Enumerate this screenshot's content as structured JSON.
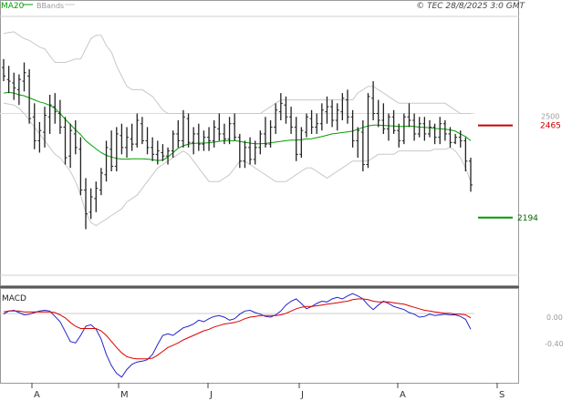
{
  "header": {
    "ma_label": "MA20",
    "bb_label": "BBands",
    "copyright": "© TEC 28/8/2025 3:0 GMT"
  },
  "colors": {
    "ma": "#00a000",
    "bands": "#c8c8c8",
    "price": "#222222",
    "macd": "#2222cc",
    "signal": "#dd0000",
    "resistance": "#cc0000",
    "support": "#009900"
  },
  "levels": {
    "resistance": {
      "label": "2465",
      "value": 2465
    },
    "support": {
      "label": "2194",
      "value": 2194
    },
    "grid_label": "2500"
  },
  "macd": {
    "title": "MACD",
    "ticks": [
      "0.00",
      "-0.40"
    ]
  },
  "months": [
    "A",
    "M",
    "J",
    "J",
    "A",
    "S"
  ],
  "chart_data": [
    {
      "type": "ohlc",
      "title": "",
      "overlays": [
        "MA20",
        "BBands"
      ],
      "price_range": [
        2030,
        2780
      ],
      "horizontal_levels": [
        2465,
        2194
      ],
      "gridline": 2500,
      "x_months": [
        "A",
        "M",
        "J",
        "J",
        "A",
        "S"
      ],
      "ohlc": [
        [
          2635,
          2660,
          2595,
          2610
        ],
        [
          2600,
          2640,
          2560,
          2595
        ],
        [
          2590,
          2620,
          2540,
          2575
        ],
        [
          2570,
          2615,
          2525,
          2600
        ],
        [
          2595,
          2650,
          2565,
          2620
        ],
        [
          2610,
          2630,
          2470,
          2485
        ],
        [
          2490,
          2530,
          2395,
          2420
        ],
        [
          2420,
          2475,
          2385,
          2450
        ],
        [
          2445,
          2520,
          2400,
          2495
        ],
        [
          2490,
          2555,
          2440,
          2525
        ],
        [
          2520,
          2560,
          2470,
          2505
        ],
        [
          2500,
          2540,
          2440,
          2460
        ],
        [
          2460,
          2490,
          2350,
          2370
        ],
        [
          2375,
          2470,
          2340,
          2450
        ],
        [
          2440,
          2480,
          2380,
          2400
        ],
        [
          2395,
          2430,
          2260,
          2275
        ],
        [
          2275,
          2310,
          2160,
          2205
        ],
        [
          2210,
          2280,
          2190,
          2255
        ],
        [
          2250,
          2300,
          2210,
          2280
        ],
        [
          2275,
          2340,
          2260,
          2325
        ],
        [
          2320,
          2420,
          2300,
          2400
        ],
        [
          2395,
          2450,
          2330,
          2345
        ],
        [
          2345,
          2460,
          2330,
          2440
        ],
        [
          2435,
          2470,
          2380,
          2400
        ],
        [
          2400,
          2460,
          2370,
          2430
        ],
        [
          2425,
          2470,
          2390,
          2410
        ],
        [
          2410,
          2500,
          2400,
          2480
        ],
        [
          2470,
          2490,
          2410,
          2420
        ],
        [
          2420,
          2460,
          2380,
          2400
        ],
        [
          2400,
          2430,
          2360,
          2380
        ],
        [
          2380,
          2420,
          2350,
          2390
        ],
        [
          2385,
          2410,
          2360,
          2375
        ],
        [
          2375,
          2400,
          2350,
          2390
        ],
        [
          2390,
          2450,
          2370,
          2440
        ],
        [
          2440,
          2480,
          2400,
          2420
        ],
        [
          2420,
          2510,
          2400,
          2490
        ],
        [
          2485,
          2500,
          2400,
          2415
        ],
        [
          2415,
          2460,
          2380,
          2440
        ],
        [
          2440,
          2470,
          2390,
          2410
        ],
        [
          2410,
          2450,
          2390,
          2430
        ],
        [
          2430,
          2460,
          2390,
          2420
        ],
        [
          2420,
          2480,
          2400,
          2460
        ],
        [
          2455,
          2500,
          2420,
          2440
        ],
        [
          2440,
          2470,
          2410,
          2425
        ],
        [
          2425,
          2490,
          2410,
          2470
        ],
        [
          2470,
          2500,
          2420,
          2430
        ],
        [
          2430,
          2440,
          2340,
          2360
        ],
        [
          2360,
          2420,
          2340,
          2400
        ],
        [
          2400,
          2430,
          2350,
          2365
        ],
        [
          2365,
          2420,
          2350,
          2400
        ],
        [
          2400,
          2450,
          2380,
          2440
        ],
        [
          2440,
          2490,
          2400,
          2410
        ],
        [
          2410,
          2480,
          2400,
          2460
        ],
        [
          2460,
          2530,
          2440,
          2510
        ],
        [
          2505,
          2560,
          2480,
          2530
        ],
        [
          2525,
          2550,
          2470,
          2490
        ],
        [
          2490,
          2520,
          2440,
          2460
        ],
        [
          2460,
          2490,
          2360,
          2380
        ],
        [
          2380,
          2460,
          2370,
          2450
        ],
        [
          2445,
          2500,
          2430,
          2490
        ],
        [
          2485,
          2510,
          2440,
          2460
        ],
        [
          2460,
          2500,
          2440,
          2470
        ],
        [
          2470,
          2530,
          2450,
          2510
        ],
        [
          2505,
          2550,
          2470,
          2520
        ],
        [
          2520,
          2540,
          2460,
          2480
        ],
        [
          2480,
          2530,
          2450,
          2510
        ],
        [
          2505,
          2560,
          2480,
          2545
        ],
        [
          2540,
          2570,
          2470,
          2490
        ],
        [
          2490,
          2510,
          2400,
          2420
        ],
        [
          2420,
          2460,
          2370,
          2450
        ],
        [
          2445,
          2480,
          2330,
          2350
        ],
        [
          2350,
          2560,
          2340,
          2550
        ],
        [
          2545,
          2595,
          2480,
          2500
        ],
        [
          2500,
          2540,
          2460,
          2480
        ],
        [
          2480,
          2530,
          2440,
          2455
        ],
        [
          2455,
          2500,
          2420,
          2490
        ],
        [
          2490,
          2510,
          2440,
          2450
        ],
        [
          2450,
          2470,
          2400,
          2420
        ],
        [
          2420,
          2500,
          2410,
          2490
        ],
        [
          2490,
          2530,
          2460,
          2480
        ],
        [
          2480,
          2500,
          2420,
          2440
        ],
        [
          2440,
          2490,
          2430,
          2470
        ],
        [
          2470,
          2490,
          2420,
          2440
        ],
        [
          2440,
          2480,
          2430,
          2460
        ],
        [
          2460,
          2470,
          2410,
          2430
        ],
        [
          2430,
          2490,
          2410,
          2470
        ],
        [
          2470,
          2480,
          2420,
          2440
        ],
        [
          2440,
          2460,
          2400,
          2415
        ],
        [
          2415,
          2440,
          2410,
          2430
        ],
        [
          2430,
          2450,
          2400,
          2420
        ],
        [
          2420,
          2430,
          2330,
          2360
        ],
        [
          2360,
          2370,
          2270,
          2290
        ]
      ],
      "ma20": [
        2560,
        2562,
        2560,
        2555,
        2552,
        2546,
        2540,
        2534,
        2530,
        2524,
        2515,
        2500,
        2483,
        2468,
        2452,
        2438,
        2420,
        2408,
        2396,
        2385,
        2377,
        2372,
        2368,
        2366,
        2366,
        2367,
        2367,
        2367,
        2366,
        2364,
        2362,
        2363,
        2372,
        2385,
        2398,
        2405,
        2410,
        2412,
        2413,
        2413,
        2414,
        2416,
        2418,
        2420,
        2420,
        2420,
        2418,
        2415,
        2413,
        2411,
        2411,
        2412,
        2414,
        2416,
        2418,
        2420,
        2422,
        2422,
        2423,
        2425,
        2426,
        2429,
        2432,
        2436,
        2440,
        2442,
        2444,
        2446,
        2448,
        2454,
        2459,
        2463,
        2466,
        2466,
        2465,
        2464,
        2463,
        2462,
        2462,
        2463,
        2462,
        2460,
        2459,
        2458,
        2456,
        2455,
        2454,
        2452,
        2448,
        2440,
        2432,
        2420
      ],
      "bb_upper": [
        2735,
        2738,
        2740,
        2730,
        2720,
        2715,
        2705,
        2695,
        2690,
        2670,
        2650,
        2650,
        2650,
        2655,
        2660,
        2660,
        2690,
        2720,
        2730,
        2730,
        2700,
        2680,
        2640,
        2610,
        2580,
        2570,
        2570,
        2570,
        2560,
        2550,
        2530,
        2510,
        2500,
        2500,
        2500,
        2500,
        2500,
        2500,
        2500,
        2500,
        2500,
        2500,
        2500,
        2500,
        2500,
        2500,
        2500,
        2500,
        2500,
        2500,
        2500,
        2510,
        2520,
        2530,
        2540,
        2540,
        2540,
        2540,
        2540,
        2540,
        2540,
        2540,
        2540,
        2540,
        2540,
        2540,
        2540,
        2540,
        2540,
        2560,
        2570,
        2580,
        2580,
        2570,
        2560,
        2550,
        2540,
        2530,
        2530,
        2530,
        2530,
        2530,
        2530,
        2530,
        2530,
        2530,
        2530,
        2520,
        2510,
        2500,
        2500,
        2500
      ],
      "bb_lower": [
        2530,
        2528,
        2525,
        2515,
        2500,
        2480,
        2460,
        2440,
        2420,
        2400,
        2380,
        2370,
        2350,
        2330,
        2300,
        2260,
        2210,
        2180,
        2170,
        2180,
        2190,
        2200,
        2210,
        2220,
        2240,
        2250,
        2260,
        2280,
        2300,
        2320,
        2340,
        2350,
        2360,
        2370,
        2380,
        2390,
        2380,
        2360,
        2340,
        2320,
        2300,
        2300,
        2300,
        2310,
        2320,
        2340,
        2360,
        2360,
        2350,
        2340,
        2330,
        2320,
        2310,
        2300,
        2300,
        2300,
        2310,
        2320,
        2330,
        2340,
        2340,
        2330,
        2320,
        2310,
        2320,
        2330,
        2340,
        2350,
        2360,
        2360,
        2360,
        2360,
        2370,
        2380,
        2380,
        2380,
        2380,
        2390,
        2390,
        2390,
        2390,
        2390,
        2390,
        2390,
        2395,
        2395,
        2395,
        2400,
        2390,
        2370,
        2340,
        2300
      ]
    },
    {
      "type": "line",
      "title": "MACD",
      "y_ticks": [
        0.0,
        -0.4
      ],
      "ylim": [
        -0.9,
        0.3
      ],
      "series": [
        {
          "name": "MACD",
          "values": [
            -0.02,
            0.02,
            0.03,
            0.0,
            -0.03,
            -0.02,
            0.0,
            0.02,
            0.03,
            0.02,
            -0.05,
            -0.12,
            -0.25,
            -0.38,
            -0.4,
            -0.3,
            -0.18,
            -0.16,
            -0.22,
            -0.35,
            -0.55,
            -0.7,
            -0.8,
            -0.85,
            -0.75,
            -0.68,
            -0.65,
            -0.64,
            -0.62,
            -0.55,
            -0.42,
            -0.3,
            -0.28,
            -0.3,
            -0.25,
            -0.2,
            -0.18,
            -0.15,
            -0.1,
            -0.12,
            -0.08,
            -0.05,
            -0.04,
            -0.06,
            -0.1,
            -0.08,
            -0.02,
            0.02,
            0.03,
            0.0,
            -0.02,
            -0.05,
            -0.06,
            -0.03,
            0.02,
            0.1,
            0.15,
            0.18,
            0.12,
            0.05,
            0.08,
            0.12,
            0.15,
            0.14,
            0.18,
            0.2,
            0.18,
            0.22,
            0.25,
            0.22,
            0.18,
            0.1,
            0.04,
            0.1,
            0.15,
            0.12,
            0.08,
            0.06,
            0.04,
            0.0,
            -0.02,
            -0.06,
            -0.05,
            -0.02,
            -0.04,
            -0.03,
            -0.02,
            -0.03,
            -0.03,
            -0.05,
            -0.09,
            -0.22
          ]
        },
        {
          "name": "Signal",
          "values": [
            0.01,
            0.02,
            0.02,
            0.02,
            0.01,
            0.01,
            0.01,
            0.01,
            0.01,
            0.01,
            0.0,
            -0.03,
            -0.07,
            -0.13,
            -0.18,
            -0.21,
            -0.21,
            -0.21,
            -0.21,
            -0.24,
            -0.3,
            -0.38,
            -0.46,
            -0.53,
            -0.58,
            -0.6,
            -0.61,
            -0.61,
            -0.61,
            -0.6,
            -0.56,
            -0.51,
            -0.46,
            -0.43,
            -0.4,
            -0.36,
            -0.33,
            -0.3,
            -0.27,
            -0.24,
            -0.22,
            -0.19,
            -0.17,
            -0.15,
            -0.14,
            -0.13,
            -0.11,
            -0.08,
            -0.06,
            -0.05,
            -0.04,
            -0.04,
            -0.04,
            -0.04,
            -0.03,
            -0.01,
            0.02,
            0.05,
            0.07,
            0.08,
            0.08,
            0.09,
            0.1,
            0.11,
            0.12,
            0.13,
            0.14,
            0.15,
            0.17,
            0.18,
            0.18,
            0.17,
            0.15,
            0.14,
            0.14,
            0.14,
            0.13,
            0.12,
            0.11,
            0.09,
            0.07,
            0.05,
            0.03,
            0.02,
            0.01,
            0.0,
            -0.01,
            -0.01,
            -0.02,
            -0.02,
            -0.03,
            -0.07
          ]
        }
      ]
    }
  ]
}
